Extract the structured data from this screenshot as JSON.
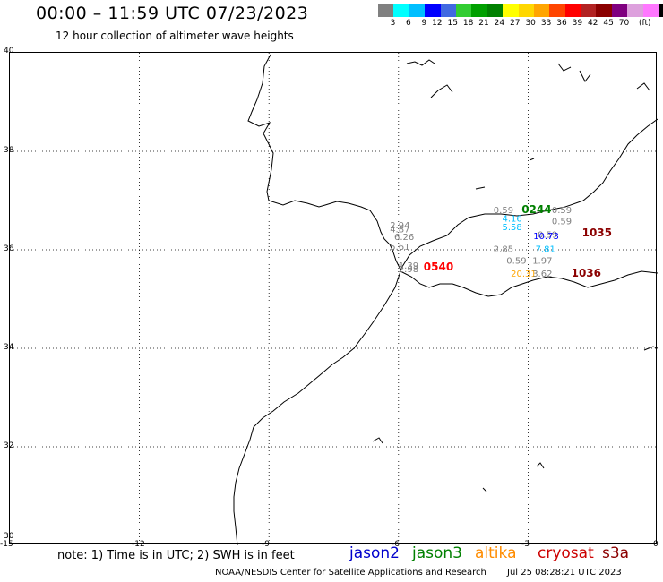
{
  "header": {
    "title": "00:00 – 11:59 UTC 07/23/2023",
    "subtitle": "12 hour collection of altimeter wave heights"
  },
  "colorbar": {
    "colors": [
      "#808080",
      "#00ffff",
      "#00bfff",
      "#0000ff",
      "#4169e1",
      "#32cd32",
      "#00a000",
      "#008000",
      "#ffff00",
      "#ffd700",
      "#ffa500",
      "#ff4500",
      "#ff0000",
      "#b22222",
      "#8b0000",
      "#800080",
      "#dda0dd",
      "#ff77ff",
      "#000000"
    ],
    "labels": [
      "3",
      "6",
      "9",
      "12",
      "15",
      "18",
      "21",
      "24",
      "27",
      "30",
      "33",
      "36",
      "39",
      "42",
      "45",
      "70"
    ],
    "unit": "(ft)"
  },
  "axes": {
    "y_ticks": [
      "40",
      "38",
      "36",
      "34",
      "32",
      "30"
    ],
    "x_ticks": [
      "-15",
      "-12",
      "-9",
      "-6",
      "-3",
      "0"
    ]
  },
  "observations": [
    {
      "text": "0.59",
      "lon": -3.8,
      "lat": 36.75,
      "color": "#808080"
    },
    {
      "text": "0244",
      "lon": -3.15,
      "lat": 36.75,
      "color": "#008000",
      "pass": true
    },
    {
      "text": "0.59",
      "lon": -2.45,
      "lat": 36.75,
      "color": "#808080"
    },
    {
      "text": "4.16",
      "lon": -3.6,
      "lat": 36.57,
      "color": "#00bfff"
    },
    {
      "text": "0.59",
      "lon": -2.45,
      "lat": 36.52,
      "color": "#808080"
    },
    {
      "text": "5.58",
      "lon": -3.6,
      "lat": 36.4,
      "color": "#00bfff"
    },
    {
      "text": "2.94",
      "lon": -6.2,
      "lat": 36.44,
      "color": "#808080"
    },
    {
      "text": "4.87",
      "lon": -6.2,
      "lat": 36.35,
      "color": "#808080"
    },
    {
      "text": "6.26",
      "lon": -6.1,
      "lat": 36.2,
      "color": "#808080"
    },
    {
      "text": "5.61",
      "lon": -6.2,
      "lat": 36.0,
      "color": "#808080"
    },
    {
      "text": "0.59",
      "lon": -2.78,
      "lat": 36.25,
      "color": "#808080"
    },
    {
      "text": "10.73",
      "lon": -2.88,
      "lat": 36.22,
      "color": "#0000ff"
    },
    {
      "text": "1035",
      "lon": -1.75,
      "lat": 36.27,
      "color": "#8b0000",
      "pass": true
    },
    {
      "text": "2.85",
      "lon": -3.8,
      "lat": 35.95,
      "color": "#808080"
    },
    {
      "text": "7.81",
      "lon": -2.83,
      "lat": 35.95,
      "color": "#00bfff"
    },
    {
      "text": "0.59",
      "lon": -3.5,
      "lat": 35.72,
      "color": "#808080"
    },
    {
      "text": "1.97",
      "lon": -2.9,
      "lat": 35.72,
      "color": "#808080"
    },
    {
      "text": "1.39",
      "lon": -6.0,
      "lat": 35.62,
      "color": "#808080"
    },
    {
      "text": "2.98",
      "lon": -6.0,
      "lat": 35.55,
      "color": "#808080"
    },
    {
      "text": "0540",
      "lon": -5.42,
      "lat": 35.58,
      "color": "#ff0000",
      "pass": true
    },
    {
      "text": "20.31",
      "lon": -3.4,
      "lat": 35.45,
      "color": "#ffa500"
    },
    {
      "text": "3.62",
      "lon": -2.9,
      "lat": 35.45,
      "color": "#808080"
    },
    {
      "text": "1036",
      "lon": -2.0,
      "lat": 35.45,
      "color": "#8b0000",
      "pass": true
    }
  ],
  "footer": {
    "note": "note: 1) Time is in UTC; 2) SWH is in feet",
    "legend": [
      {
        "label": "jason2",
        "color": "#0000cc"
      },
      {
        "label": "jason3",
        "color": "#008000"
      },
      {
        "label": "altika",
        "color": "#ff8c00"
      },
      {
        "label": "cryosat",
        "color": "#cc0000"
      },
      {
        "label": "s3a",
        "color": "#8b0000"
      }
    ],
    "credit": "NOAA/NESDIS Center for Satellite Applications and Research",
    "date": "Jul 25 08:28:21 UTC 2023"
  }
}
